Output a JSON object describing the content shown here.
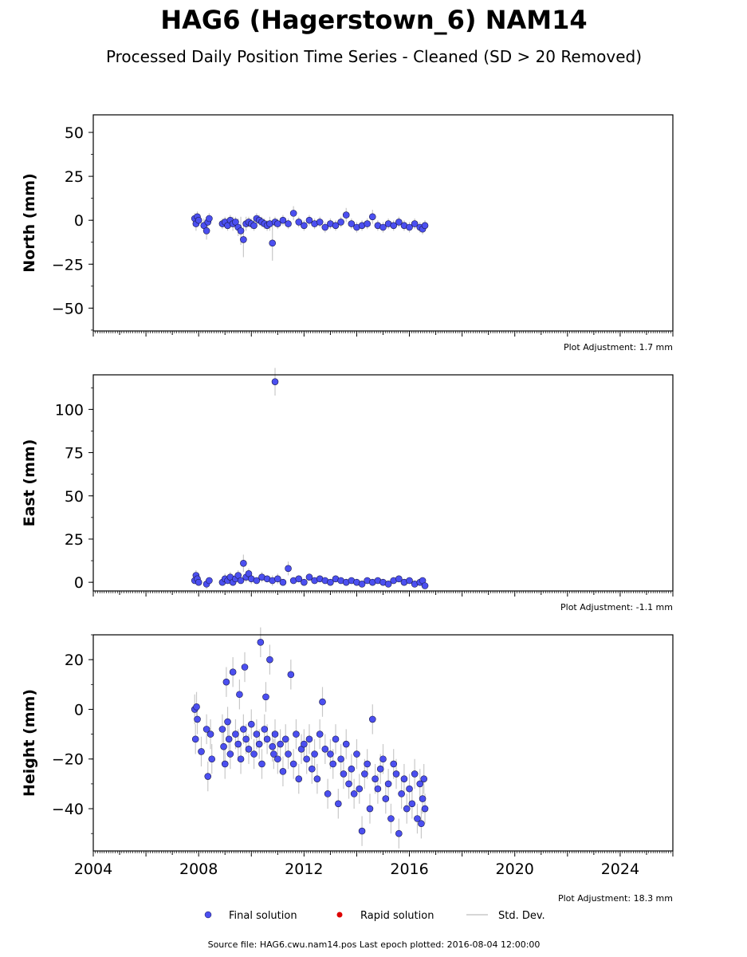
{
  "title": "HAG6 (Hagerstown_6) NAM14",
  "subtitle": "Processed Daily Position Time Series - Cleaned (SD > 20 Removed)",
  "source": "Source file: HAG6.cwu.nam14.pos  Last epoch plotted: 2016-08-04 12:00:00",
  "legend": {
    "final": "Final solution",
    "rapid": "Rapid solution",
    "std": "Std. Dev."
  },
  "colors": {
    "final": "#4b4ff0",
    "final_edge": "#1a1a4a",
    "rapid": "#dd0000",
    "std": "#c8c8c8"
  },
  "chart_data": [
    {
      "type": "scatter",
      "ylabel": "North (mm)",
      "adjustment": "Plot Adjustment: 1.7 mm",
      "xlim": [
        2004,
        2026
      ],
      "ylim": [
        -63,
        60
      ],
      "yticks": [
        50,
        25,
        0,
        -25,
        -50
      ],
      "ytick_labels": [
        "50",
        "25",
        "0",
        "−25",
        "−50"
      ],
      "x_tick_labels_shown": false,
      "series": [
        {
          "name": "Final solution",
          "x": [
            2007.85,
            2007.9,
            2007.95,
            2008.0,
            2008.2,
            2008.3,
            2008.35,
            2008.4,
            2008.9,
            2009.0,
            2009.1,
            2009.2,
            2009.3,
            2009.4,
            2009.5,
            2009.6,
            2009.7,
            2009.8,
            2009.9,
            2010.0,
            2010.1,
            2010.2,
            2010.3,
            2010.4,
            2010.5,
            2010.6,
            2010.7,
            2010.8,
            2010.9,
            2011.0,
            2011.2,
            2011.4,
            2011.6,
            2011.8,
            2012.0,
            2012.2,
            2012.4,
            2012.6,
            2012.8,
            2013.0,
            2013.2,
            2013.4,
            2013.6,
            2013.8,
            2014.0,
            2014.2,
            2014.4,
            2014.6,
            2014.8,
            2015.0,
            2015.2,
            2015.4,
            2015.6,
            2015.8,
            2016.0,
            2016.2,
            2016.4,
            2016.5,
            2016.59
          ],
          "y": [
            1,
            -2,
            2,
            0,
            -3,
            -6,
            -1,
            1,
            -2,
            -1,
            -3,
            0,
            -2,
            -1,
            -4,
            -6,
            -11,
            -2,
            -1,
            -2,
            -3,
            1,
            0,
            -1,
            -2,
            -3,
            -2,
            -13,
            -1,
            -2,
            0,
            -2,
            4,
            -1,
            -3,
            0,
            -2,
            -1,
            -4,
            -2,
            -3,
            -1,
            3,
            -2,
            -4,
            -3,
            -2,
            2,
            -3,
            -4,
            -2,
            -3,
            -1,
            -3,
            -4,
            -2,
            -4,
            -5,
            -3
          ],
          "err": [
            3,
            4,
            3,
            3,
            4,
            5,
            4,
            3,
            3,
            3,
            3,
            3,
            4,
            3,
            5,
            8,
            10,
            4,
            3,
            3,
            3,
            3,
            3,
            3,
            3,
            3,
            4,
            10,
            3,
            3,
            3,
            3,
            4,
            3,
            3,
            3,
            3,
            3,
            3,
            3,
            3,
            3,
            4,
            3,
            3,
            3,
            3,
            4,
            3,
            3,
            3,
            3,
            3,
            3,
            3,
            3,
            3,
            3,
            3
          ]
        }
      ]
    },
    {
      "type": "scatter",
      "ylabel": "East (mm)",
      "adjustment": "Plot Adjustment: -1.1 mm",
      "xlim": [
        2004,
        2026
      ],
      "ylim": [
        -5,
        120
      ],
      "yticks": [
        100,
        75,
        50,
        25,
        0
      ],
      "ytick_labels": [
        "100",
        "75",
        "50",
        "25",
        "0"
      ],
      "x_tick_labels_shown": false,
      "series": [
        {
          "name": "Final solution",
          "x": [
            2007.85,
            2007.9,
            2007.95,
            2008.0,
            2008.3,
            2008.4,
            2008.9,
            2009.0,
            2009.1,
            2009.2,
            2009.3,
            2009.4,
            2009.5,
            2009.6,
            2009.7,
            2009.8,
            2009.9,
            2010.0,
            2010.2,
            2010.4,
            2010.6,
            2010.8,
            2010.9,
            2011.0,
            2011.2,
            2011.4,
            2011.6,
            2011.8,
            2012.0,
            2012.2,
            2012.4,
            2012.6,
            2012.8,
            2013.0,
            2013.2,
            2013.4,
            2013.6,
            2013.8,
            2014.0,
            2014.2,
            2014.4,
            2014.6,
            2014.8,
            2015.0,
            2015.2,
            2015.4,
            2015.6,
            2015.8,
            2016.0,
            2016.2,
            2016.4,
            2016.5,
            2016.59
          ],
          "y": [
            1,
            4,
            2,
            0,
            -1,
            1,
            0,
            2,
            1,
            3,
            0,
            2,
            4,
            1,
            11,
            3,
            5,
            2,
            1,
            3,
            2,
            1,
            116,
            2,
            0,
            8,
            1,
            2,
            0,
            3,
            1,
            2,
            1,
            0,
            2,
            1,
            0,
            1,
            0,
            -1,
            1,
            0,
            1,
            0,
            -1,
            1,
            2,
            0,
            1,
            -1,
            0,
            1,
            -2
          ],
          "err": [
            2,
            3,
            2,
            2,
            3,
            2,
            2,
            3,
            2,
            3,
            2,
            3,
            3,
            2,
            5,
            3,
            3,
            3,
            2,
            3,
            2,
            3,
            8,
            3,
            2,
            4,
            2,
            2,
            2,
            2,
            2,
            2,
            2,
            2,
            2,
            2,
            2,
            2,
            2,
            2,
            2,
            2,
            2,
            2,
            2,
            2,
            2,
            2,
            2,
            2,
            2,
            2,
            2
          ]
        }
      ]
    },
    {
      "type": "scatter",
      "ylabel": "Height (mm)",
      "adjustment": "Plot Adjustment: 18.3 mm",
      "xlim": [
        2004,
        2026
      ],
      "ylim": [
        -57,
        30
      ],
      "yticks": [
        20,
        0,
        -20,
        -40
      ],
      "ytick_labels": [
        "20",
        "0",
        "−20",
        "−40"
      ],
      "x_tick_labels_shown": true,
      "xticks": [
        2004,
        2008,
        2012,
        2016,
        2020,
        2024
      ],
      "xtick_labels": [
        "2004",
        "2008",
        "2012",
        "2016",
        "2020",
        "2024"
      ],
      "series": [
        {
          "name": "Final solution",
          "x": [
            2007.85,
            2007.88,
            2007.92,
            2007.95,
            2008.1,
            2008.3,
            2008.35,
            2008.45,
            2008.5,
            2008.9,
            2008.95,
            2009.0,
            2009.05,
            2009.1,
            2009.15,
            2009.2,
            2009.3,
            2009.4,
            2009.5,
            2009.55,
            2009.6,
            2009.7,
            2009.75,
            2009.8,
            2009.9,
            2010.0,
            2010.1,
            2010.2,
            2010.3,
            2010.35,
            2010.4,
            2010.5,
            2010.55,
            2010.6,
            2010.7,
            2010.8,
            2010.85,
            2010.9,
            2011.0,
            2011.1,
            2011.2,
            2011.3,
            2011.4,
            2011.5,
            2011.6,
            2011.7,
            2011.8,
            2011.9,
            2012.0,
            2012.1,
            2012.2,
            2012.3,
            2012.4,
            2012.5,
            2012.6,
            2012.7,
            2012.8,
            2012.9,
            2013.0,
            2013.1,
            2013.2,
            2013.3,
            2013.4,
            2013.5,
            2013.6,
            2013.7,
            2013.8,
            2013.9,
            2014.0,
            2014.1,
            2014.2,
            2014.3,
            2014.4,
            2014.5,
            2014.6,
            2014.7,
            2014.8,
            2014.9,
            2015.0,
            2015.1,
            2015.2,
            2015.3,
            2015.4,
            2015.5,
            2015.6,
            2015.7,
            2015.8,
            2015.9,
            2016.0,
            2016.1,
            2016.2,
            2016.3,
            2016.4,
            2016.45,
            2016.5,
            2016.55,
            2016.59
          ],
          "y": [
            0,
            -12,
            1,
            -4,
            -17,
            -8,
            -27,
            -10,
            -20,
            -8,
            -15,
            -22,
            11,
            -5,
            -12,
            -18,
            15,
            -10,
            -14,
            6,
            -20,
            -8,
            17,
            -12,
            -16,
            -6,
            -18,
            -10,
            -14,
            27,
            -22,
            -8,
            5,
            -12,
            20,
            -15,
            -18,
            -10,
            -20,
            -14,
            -25,
            -12,
            -18,
            14,
            -22,
            -10,
            -28,
            -16,
            -14,
            -20,
            -12,
            -24,
            -18,
            -28,
            -10,
            3,
            -16,
            -34,
            -18,
            -22,
            -12,
            -38,
            -20,
            -26,
            -14,
            -30,
            -24,
            -34,
            -18,
            -32,
            -49,
            -26,
            -22,
            -40,
            -4,
            -28,
            -32,
            -24,
            -20,
            -36,
            -30,
            -44,
            -22,
            -26,
            -50,
            -34,
            -28,
            -40,
            -32,
            -38,
            -26,
            -44,
            -30,
            -46,
            -36,
            -28,
            -40
          ]
        }
      ]
    }
  ]
}
